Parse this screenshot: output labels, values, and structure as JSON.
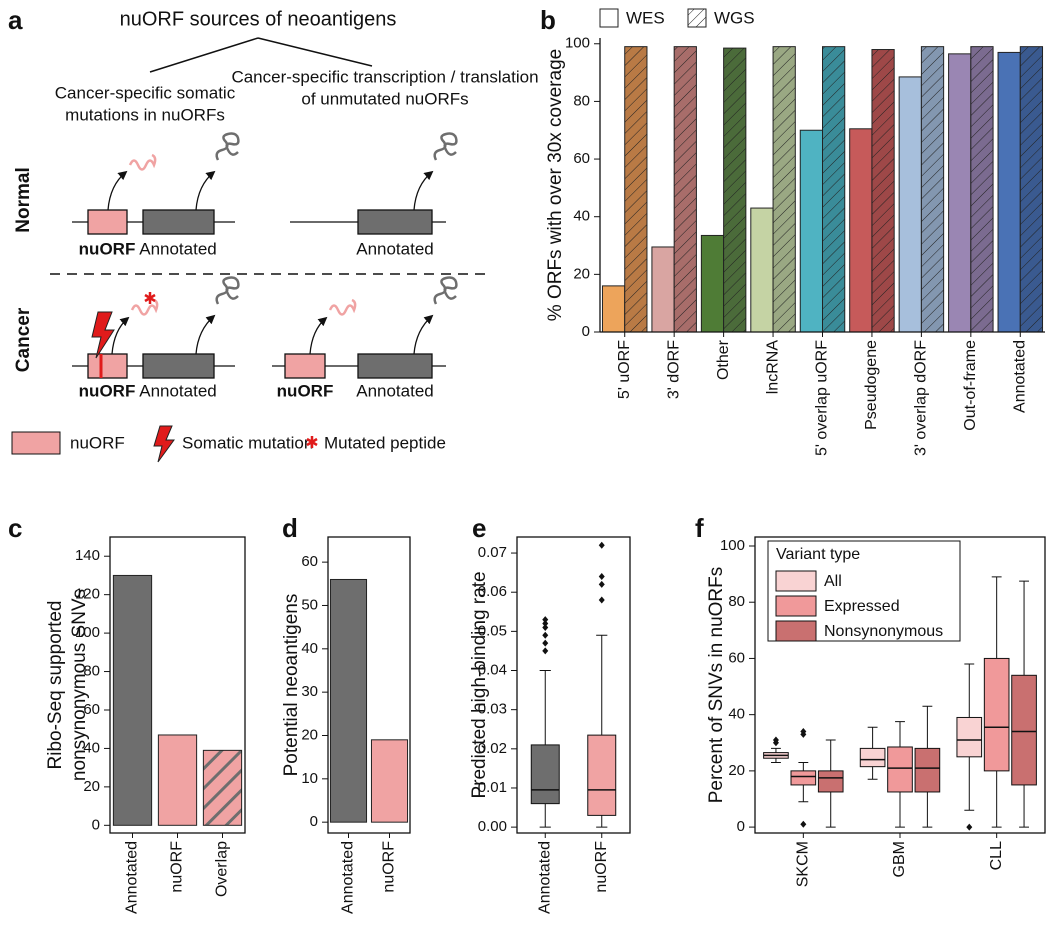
{
  "diagram": {
    "panel": "a",
    "title": "nuORF sources of neoantigens",
    "left_heading": [
      "Cancer-specific somatic",
      "mutations in nuORFs"
    ],
    "right_heading": [
      "Cancer-specific transcription / translation",
      "of unmutated nuORFs"
    ],
    "row_labels": [
      "Normal",
      "Cancer"
    ],
    "orf_labels": {
      "nuorf": "nuORF",
      "annotated": "Annotated"
    },
    "legend": [
      "nuORF",
      "Somatic mutation",
      "Mutated peptide"
    ]
  },
  "chart_data": [
    {
      "panel": "b",
      "type": "bar",
      "y_label": "% ORFs with over 30x coverage",
      "legend": "top",
      "categories": [
        "5' uORF",
        "3' dORF",
        "Other",
        "lncRNA",
        "5' overlap uORF",
        "Pseudogene",
        "3' overlap dORF",
        "Out-of-frame",
        "Annotated"
      ],
      "series": [
        {
          "name": "WES",
          "hatched": false,
          "colors": [
            "#eda45b",
            "#d9a5a2",
            "#4f7c36",
            "#c5d3a4",
            "#4fb3c2",
            "#c65a5a",
            "#a7bfdc",
            "#9a86b3",
            "#4a72b5"
          ],
          "values": [
            16,
            29.5,
            33.5,
            43,
            70,
            70.5,
            88.5,
            96.5,
            97
          ]
        },
        {
          "name": "WGS",
          "hatched": true,
          "colors": [
            "#b97a45",
            "#a86d6a",
            "#4b6b3a",
            "#9aa883",
            "#3a8c99",
            "#9e4848",
            "#8397b0",
            "#7b6b90",
            "#3a5a90"
          ],
          "values": [
            99,
            99,
            98.5,
            99,
            99,
            98,
            99,
            99,
            99
          ]
        }
      ],
      "ylim": [
        0,
        102
      ],
      "yticks": [
        0,
        20,
        40,
        60,
        80,
        100
      ]
    },
    {
      "panel": "c",
      "type": "bar",
      "y_label": [
        "Ribo-Seq supported",
        "nonsynonymous SNVs"
      ],
      "categories": [
        "Annotated",
        "nuORF",
        "Overlap"
      ],
      "series": [
        {
          "colors": [
            "#6e6e6e",
            "#f0a3a3",
            "#f0a3a3"
          ],
          "hatched": [
            false,
            false,
            true
          ],
          "values": [
            130,
            47,
            39
          ]
        }
      ],
      "hatch_color": "#6e6e6e",
      "ylim": [
        -4,
        150
      ],
      "yticks": [
        0,
        20,
        40,
        60,
        80,
        100,
        120,
        140
      ]
    },
    {
      "panel": "d",
      "type": "bar",
      "y_label": "Potential neoantigens",
      "categories": [
        "Annotated",
        "nuORF"
      ],
      "series": [
        {
          "colors": [
            "#6e6e6e",
            "#f0a3a3"
          ],
          "values": [
            56,
            19
          ]
        }
      ],
      "ylim": [
        -2.5,
        65.8
      ],
      "yticks": [
        0,
        10,
        20,
        30,
        40,
        50,
        60
      ]
    },
    {
      "panel": "e",
      "type": "box",
      "y_label": "Predicted high-binding rate",
      "categories": [
        "Annotated",
        "nuORF"
      ],
      "series": [
        {
          "colors": [
            "#6e6e6e",
            "#f0a3a3"
          ],
          "boxes": [
            {
              "min": 0,
              "q1": 0.006,
              "median": 0.0095,
              "q3": 0.021,
              "max": 0.04,
              "outliers": [
                0.045,
                0.047,
                0.049,
                0.051,
                0.052,
                0.053
              ]
            },
            {
              "min": 0,
              "q1": 0.003,
              "median": 0.0095,
              "q3": 0.0235,
              "max": 0.049,
              "outliers": [
                0.058,
                0.062,
                0.064,
                0.072
              ]
            }
          ]
        }
      ],
      "ylim": [
        -0.0015,
        0.0741
      ],
      "yticks": [
        {
          "value": 0,
          "label": "0.00"
        },
        {
          "value": 0.01,
          "label": "0.01"
        },
        {
          "value": 0.02,
          "label": "0.02"
        },
        {
          "value": 0.03,
          "label": "0.03"
        },
        {
          "value": 0.04,
          "label": "0.04"
        },
        {
          "value": 0.05,
          "label": "0.05"
        },
        {
          "value": 0.06,
          "label": "0.06"
        },
        {
          "value": 0.07,
          "label": "0.07"
        }
      ]
    },
    {
      "panel": "f",
      "type": "box",
      "y_label": "Percent of SNVs in nuORFs",
      "legend": "upper left",
      "legend_title": "Variant type",
      "categories": [
        "SKCM",
        "GBM",
        "CLL"
      ],
      "series": [
        {
          "name": "All",
          "color": "#f9d3d3",
          "boxes": [
            {
              "min": 23,
              "q1": 24.5,
              "median": 25.5,
              "q3": 26.5,
              "max": 28,
              "outliers": [
                30,
                31
              ]
            },
            {
              "min": 17,
              "q1": 21.5,
              "median": 24,
              "q3": 28,
              "max": 35.5,
              "outliers": []
            },
            {
              "min": 6,
              "q1": 25,
              "median": 31,
              "q3": 39,
              "max": 58,
              "outliers": [
                0
              ]
            }
          ]
        },
        {
          "name": "Expressed",
          "color": "#f0999a",
          "boxes": [
            {
              "min": 9,
              "q1": 15,
              "median": 18,
              "q3": 20,
              "max": 23,
              "outliers": [
                1,
                33,
                34
              ]
            },
            {
              "min": 0,
              "q1": 12.5,
              "median": 21,
              "q3": 28.5,
              "max": 37.5,
              "outliers": []
            },
            {
              "min": 0,
              "q1": 20,
              "median": 35.5,
              "q3": 60,
              "max": 89,
              "outliers": []
            }
          ]
        },
        {
          "name": "Nonsynonymous",
          "color": "#c97070",
          "boxes": [
            {
              "min": 0,
              "q1": 12.5,
              "median": 17.5,
              "q3": 20,
              "max": 31,
              "outliers": []
            },
            {
              "min": 0,
              "q1": 12.5,
              "median": 21,
              "q3": 28,
              "max": 43,
              "outliers": []
            },
            {
              "min": 0,
              "q1": 15,
              "median": 34,
              "q3": 54,
              "max": 87.5,
              "outliers": []
            }
          ]
        }
      ],
      "ylim": [
        -2.1,
        103.2
      ],
      "yticks": [
        0,
        20,
        40,
        60,
        80,
        100
      ]
    }
  ]
}
